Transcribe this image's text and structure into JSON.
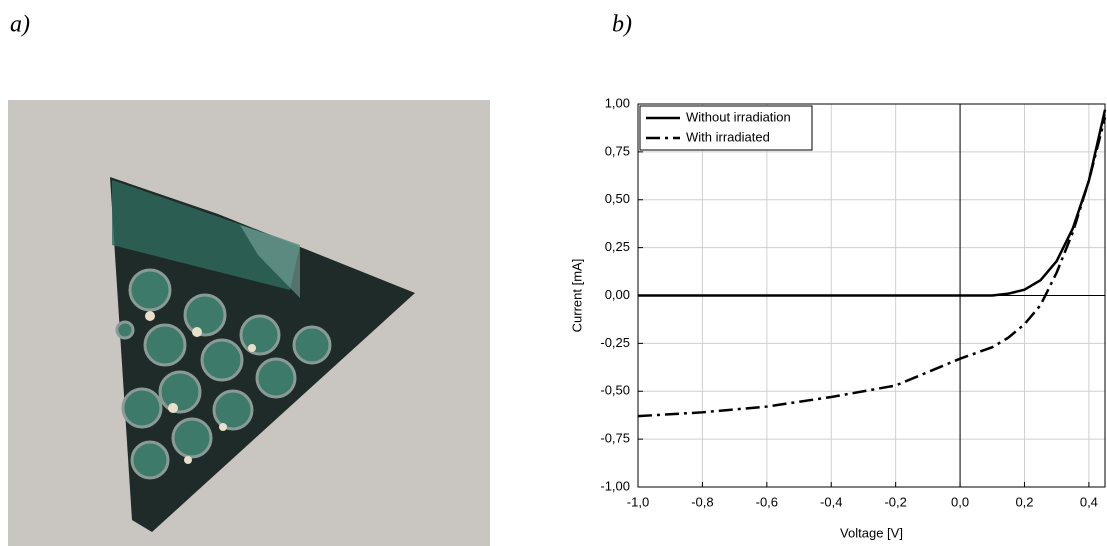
{
  "panels": {
    "a": {
      "label": "a)"
    },
    "b": {
      "label": "b)"
    }
  },
  "chart_data": {
    "type": "line",
    "xlabel": "Voltage [V]",
    "ylabel": "Current [mA]",
    "x": [
      -1.0,
      -0.8,
      -0.6,
      -0.4,
      -0.2,
      0.0,
      0.1,
      0.15,
      0.2,
      0.25,
      0.3,
      0.35,
      0.4,
      0.45
    ],
    "series": [
      {
        "name": "Without irradiation",
        "color": "#000000",
        "style": "solid",
        "values": [
          0,
          0,
          0,
          0,
          0,
          0,
          0,
          0.01,
          0.03,
          0.08,
          0.18,
          0.35,
          0.6,
          0.97
        ]
      },
      {
        "name": "With irradiated",
        "color": "#000000",
        "style": "dash-dot",
        "values": [
          -0.63,
          -0.61,
          -0.58,
          -0.53,
          -0.47,
          -0.33,
          -0.27,
          -0.22,
          -0.15,
          -0.05,
          0.12,
          0.33,
          0.6,
          0.93
        ]
      }
    ],
    "xlim": [
      -1.0,
      0.45
    ],
    "ylim": [
      -1.0,
      1.0
    ],
    "xticks": [
      {
        "value": -1.0,
        "label": "-1,0"
      },
      {
        "value": -0.8,
        "label": "-0,8"
      },
      {
        "value": -0.6,
        "label": "-0,6"
      },
      {
        "value": -0.4,
        "label": "-0,4"
      },
      {
        "value": -0.2,
        "label": "-0,2"
      },
      {
        "value": 0.0,
        "label": "0,0"
      },
      {
        "value": 0.2,
        "label": "0,2"
      },
      {
        "value": 0.4,
        "label": "0,4"
      }
    ],
    "yticks": [
      {
        "value": -1.0,
        "label": "-1,00"
      },
      {
        "value": -0.75,
        "label": "-0,75"
      },
      {
        "value": -0.5,
        "label": "-0,50"
      },
      {
        "value": -0.25,
        "label": "-0,25"
      },
      {
        "value": 0.0,
        "label": "0,00"
      },
      {
        "value": 0.25,
        "label": "0,25"
      },
      {
        "value": 0.5,
        "label": "0,50"
      },
      {
        "value": 0.75,
        "label": "0,75"
      },
      {
        "value": 1.0,
        "label": "1,00"
      }
    ],
    "grid": true,
    "legend": "top-left"
  }
}
